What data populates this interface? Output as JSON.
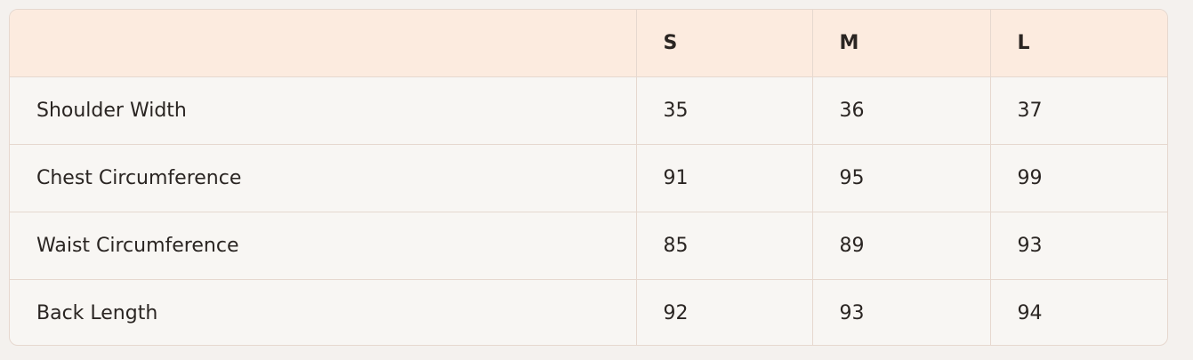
{
  "table": {
    "columns": [
      "S",
      "M",
      "L"
    ],
    "rows": [
      {
        "label": "Shoulder Width",
        "values": [
          35,
          36,
          37
        ]
      },
      {
        "label": "Chest Circumference",
        "values": [
          91,
          95,
          99
        ]
      },
      {
        "label": "Waist Circumference",
        "values": [
          85,
          89,
          93
        ]
      },
      {
        "label": "Back Length",
        "values": [
          92,
          93,
          94
        ]
      }
    ]
  }
}
